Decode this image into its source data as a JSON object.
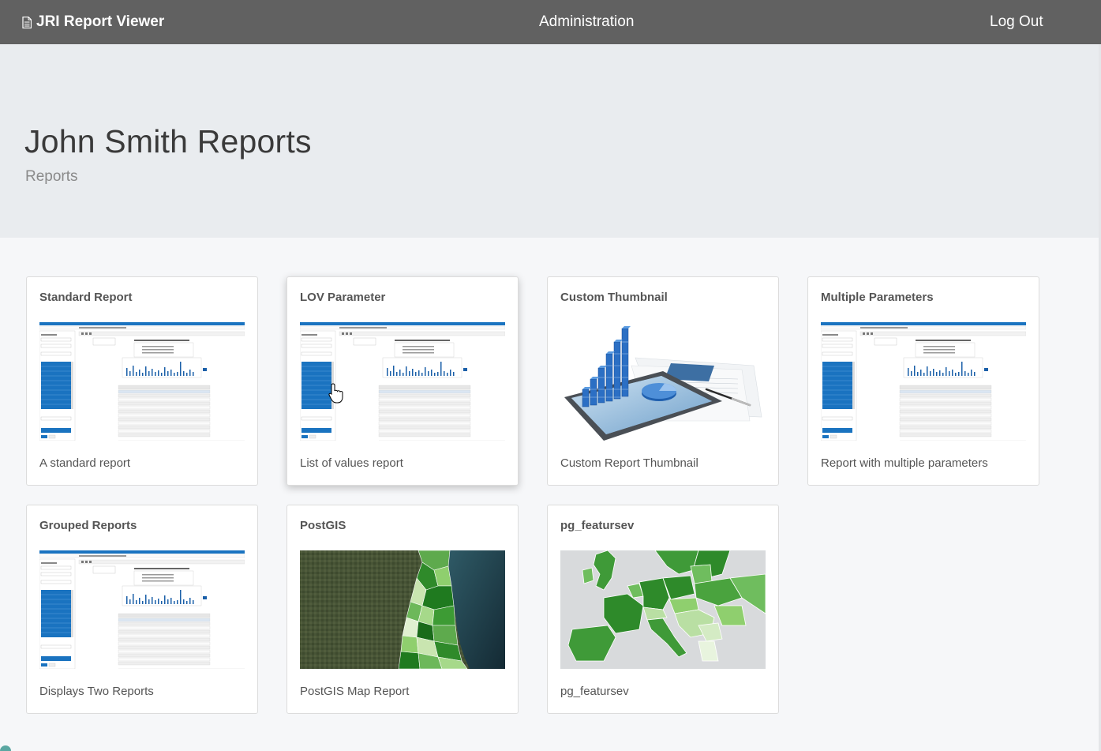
{
  "nav": {
    "brand": "JRI Report Viewer",
    "brand_icon": "document-icon",
    "admin": "Administration",
    "logout": "Log Out"
  },
  "header": {
    "title": "John Smith Reports",
    "subtitle": "Reports"
  },
  "cards": [
    {
      "title": "Standard Report",
      "description": "A standard report",
      "thumbnail": "report-screenshot"
    },
    {
      "title": "LOV Parameter",
      "description": "List of values report",
      "thumbnail": "report-screenshot-with-cursor"
    },
    {
      "title": "Custom Thumbnail",
      "description": "Custom Report Thumbnail",
      "thumbnail": "tablet-chart-image"
    },
    {
      "title": "Multiple Parameters",
      "description": "Report with multiple parameters",
      "thumbnail": "report-screenshot"
    },
    {
      "title": "Grouped Reports",
      "description": "Displays Two Reports",
      "thumbnail": "report-screenshot"
    },
    {
      "title": "PostGIS",
      "description": "PostGIS Map Report",
      "thumbnail": "satellite-map-image"
    },
    {
      "title": "pg_featursev",
      "description": "pg_featursev",
      "thumbnail": "europe-map-image"
    }
  ],
  "colors": {
    "navbar": "#616161",
    "jumbotron": "#e9ecef",
    "report_blue": "#1a73c0",
    "map_green": "#4a9a3d"
  }
}
